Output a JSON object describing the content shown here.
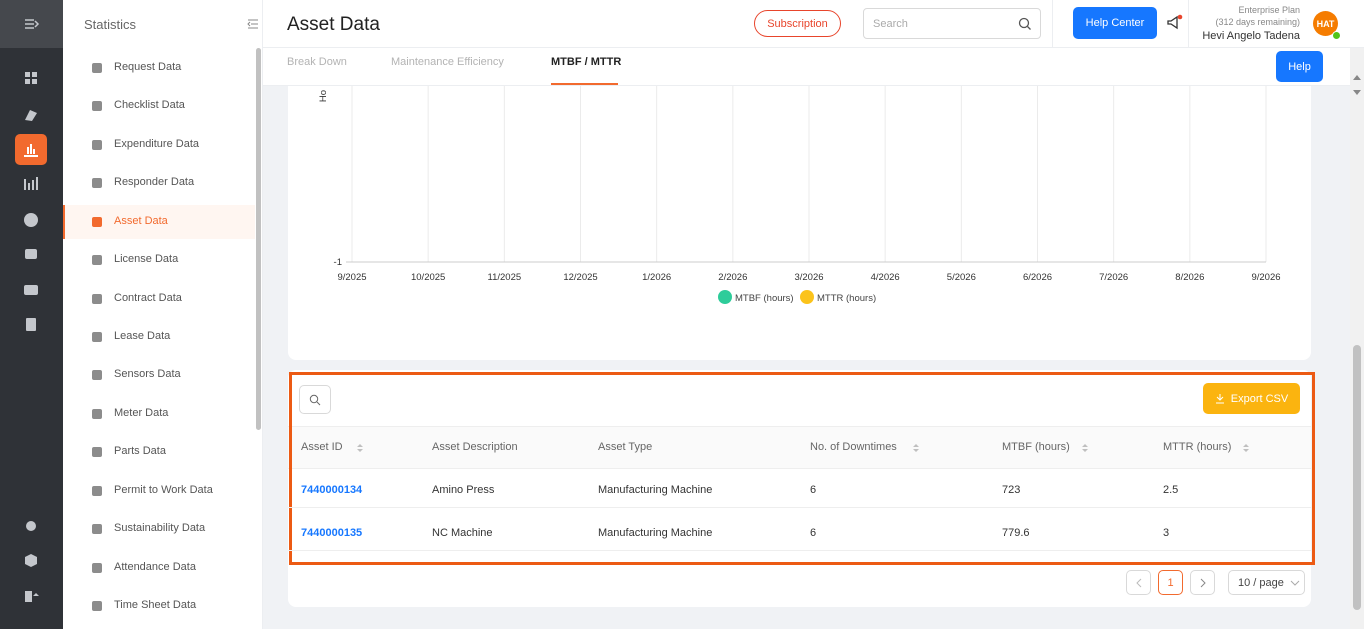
{
  "header": {
    "title": "Asset Data",
    "subscription": "Subscription",
    "search_placeholder": "Search",
    "help_center": "Help Center",
    "plan": "Enterprise Plan",
    "days_remaining": "(312 days remaining)",
    "user_name": "Hevi Angelo Tadena",
    "avatar": "HAT"
  },
  "sidebar": {
    "title": "Statistics",
    "items": [
      "Request Data",
      "Checklist Data",
      "Expenditure Data",
      "Responder Data",
      "Asset Data",
      "License Data",
      "Contract Data",
      "Lease Data",
      "Sensors Data",
      "Meter Data",
      "Parts Data",
      "Permit to Work Data",
      "Sustainability Data",
      "Attendance Data",
      "Time Sheet Data"
    ]
  },
  "tabs": [
    "Break Down",
    "Maintenance Efficiency",
    "MTBF / MTTR"
  ],
  "help": "Help",
  "chart": {
    "y_axis_label": "Ho",
    "yticks": [
      -1
    ],
    "x_labels": [
      "9/2025",
      "10/2025",
      "11/2025",
      "12/2025",
      "1/2026",
      "2/2026",
      "3/2026",
      "4/2026",
      "5/2026",
      "6/2026",
      "7/2026",
      "8/2026",
      "9/2026"
    ],
    "legend": [
      {
        "name": "MTBF (hours)",
        "color": "#2ecc9a"
      },
      {
        "name": "MTTR (hours)",
        "color": "#fbc31b"
      }
    ]
  },
  "table": {
    "export": "Export CSV",
    "columns": [
      "Asset ID",
      "Asset Description",
      "Asset Type",
      "No. of Downtimes",
      "MTBF (hours)",
      "MTTR (hours)"
    ],
    "rows": [
      [
        "7440000134",
        "Amino Press",
        "Manufacturing Machine",
        6,
        723,
        2.5
      ],
      [
        "7440000135",
        "NC Machine",
        "Manufacturing Machine",
        6,
        779.6,
        3
      ]
    ]
  },
  "pagination": {
    "page": 1,
    "page_size": "10 / page"
  }
}
